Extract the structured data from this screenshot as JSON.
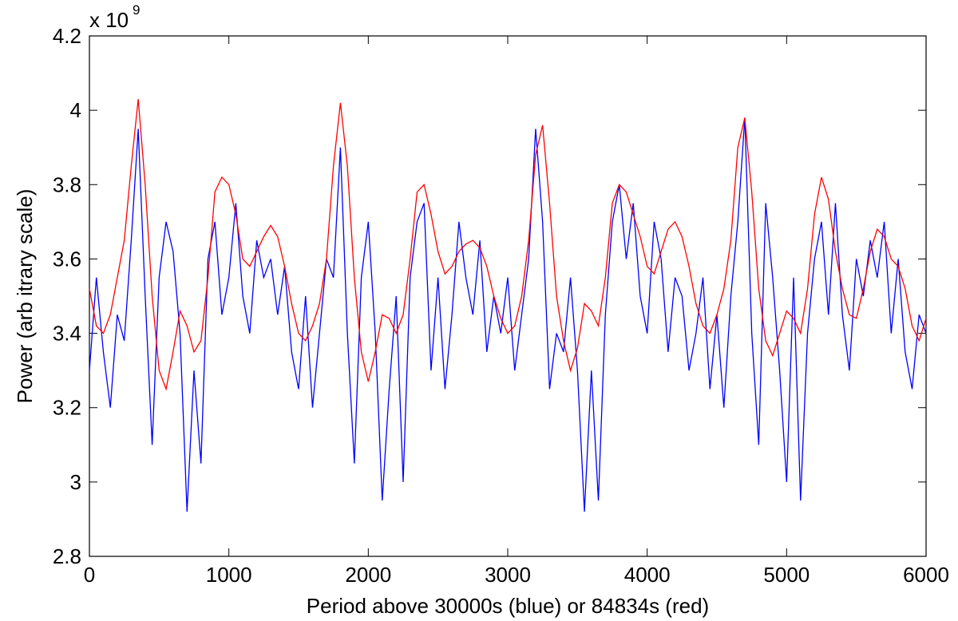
{
  "chart_data": {
    "type": "line",
    "xlabel": "Period above 30000s (blue) or  84834s (red)",
    "ylabel": "Power (arb itrary scale)",
    "y_multiplier": {
      "base": "x 10",
      "exponent": "9"
    },
    "xlim": [
      0,
      6000
    ],
    "xticks": [
      0,
      1000,
      2000,
      3000,
      4000,
      5000,
      6000
    ],
    "ylim": [
      2.8,
      4.2
    ],
    "yticks": [
      2.8,
      3,
      3.2,
      3.4,
      3.6,
      3.8,
      4,
      4.2
    ],
    "x": [
      0,
      50,
      100,
      150,
      200,
      250,
      300,
      350,
      400,
      450,
      500,
      550,
      600,
      650,
      700,
      750,
      800,
      850,
      900,
      950,
      1000,
      1050,
      1100,
      1150,
      1200,
      1250,
      1300,
      1350,
      1400,
      1450,
      1500,
      1550,
      1600,
      1650,
      1700,
      1750,
      1800,
      1850,
      1900,
      1950,
      2000,
      2050,
      2100,
      2150,
      2200,
      2250,
      2300,
      2350,
      2400,
      2450,
      2500,
      2550,
      2600,
      2650,
      2700,
      2750,
      2800,
      2850,
      2900,
      2950,
      3000,
      3050,
      3100,
      3150,
      3200,
      3250,
      3300,
      3350,
      3400,
      3450,
      3500,
      3550,
      3600,
      3650,
      3700,
      3750,
      3800,
      3850,
      3900,
      3950,
      4000,
      4050,
      4100,
      4150,
      4200,
      4250,
      4300,
      4350,
      4400,
      4450,
      4500,
      4550,
      4600,
      4650,
      4700,
      4750,
      4800,
      4850,
      4900,
      4950,
      5000,
      5050,
      5100,
      5150,
      5200,
      5250,
      5300,
      5350,
      5400,
      5450,
      5500,
      5550,
      5600,
      5650,
      5700,
      5750,
      5800,
      5850,
      5900,
      5950,
      6000
    ],
    "series": [
      {
        "color": "#0000ff",
        "values": [
          3.3,
          3.55,
          3.35,
          3.2,
          3.45,
          3.38,
          3.65,
          3.95,
          3.5,
          3.1,
          3.55,
          3.7,
          3.62,
          3.4,
          2.92,
          3.3,
          3.05,
          3.6,
          3.7,
          3.45,
          3.55,
          3.75,
          3.5,
          3.4,
          3.65,
          3.55,
          3.6,
          3.45,
          3.58,
          3.35,
          3.25,
          3.5,
          3.2,
          3.4,
          3.6,
          3.55,
          3.9,
          3.4,
          3.05,
          3.55,
          3.7,
          3.4,
          2.95,
          3.25,
          3.5,
          3.0,
          3.55,
          3.7,
          3.75,
          3.3,
          3.55,
          3.25,
          3.45,
          3.7,
          3.55,
          3.45,
          3.65,
          3.35,
          3.5,
          3.4,
          3.55,
          3.3,
          3.45,
          3.6,
          3.95,
          3.7,
          3.25,
          3.4,
          3.35,
          3.55,
          3.3,
          2.92,
          3.3,
          2.95,
          3.45,
          3.7,
          3.8,
          3.6,
          3.75,
          3.5,
          3.4,
          3.7,
          3.6,
          3.35,
          3.55,
          3.5,
          3.3,
          3.4,
          3.55,
          3.25,
          3.45,
          3.2,
          3.5,
          3.7,
          3.98,
          3.4,
          3.1,
          3.75,
          3.55,
          3.3,
          3.0,
          3.55,
          2.95,
          3.4,
          3.6,
          3.7,
          3.45,
          3.75,
          3.45,
          3.3,
          3.6,
          3.5,
          3.65,
          3.55,
          3.7,
          3.4,
          3.6,
          3.35,
          3.25,
          3.45,
          3.4
        ]
      },
      {
        "color": "#ff0000",
        "values": [
          3.52,
          3.42,
          3.4,
          3.45,
          3.55,
          3.65,
          3.85,
          4.03,
          3.8,
          3.5,
          3.3,
          3.25,
          3.35,
          3.46,
          3.42,
          3.35,
          3.38,
          3.55,
          3.78,
          3.82,
          3.8,
          3.72,
          3.6,
          3.58,
          3.62,
          3.66,
          3.69,
          3.66,
          3.58,
          3.48,
          3.4,
          3.38,
          3.42,
          3.48,
          3.6,
          3.85,
          4.02,
          3.85,
          3.55,
          3.35,
          3.27,
          3.35,
          3.45,
          3.44,
          3.4,
          3.45,
          3.6,
          3.78,
          3.8,
          3.72,
          3.62,
          3.56,
          3.58,
          3.62,
          3.64,
          3.65,
          3.63,
          3.58,
          3.5,
          3.44,
          3.4,
          3.42,
          3.5,
          3.65,
          3.88,
          3.96,
          3.75,
          3.5,
          3.38,
          3.3,
          3.36,
          3.48,
          3.46,
          3.42,
          3.55,
          3.75,
          3.8,
          3.78,
          3.72,
          3.66,
          3.58,
          3.56,
          3.62,
          3.68,
          3.7,
          3.66,
          3.58,
          3.48,
          3.42,
          3.4,
          3.45,
          3.52,
          3.65,
          3.9,
          3.98,
          3.78,
          3.52,
          3.38,
          3.34,
          3.4,
          3.46,
          3.44,
          3.4,
          3.52,
          3.72,
          3.82,
          3.76,
          3.62,
          3.52,
          3.45,
          3.44,
          3.52,
          3.62,
          3.68,
          3.66,
          3.6,
          3.58,
          3.52,
          3.42,
          3.38,
          3.44
        ]
      }
    ]
  }
}
